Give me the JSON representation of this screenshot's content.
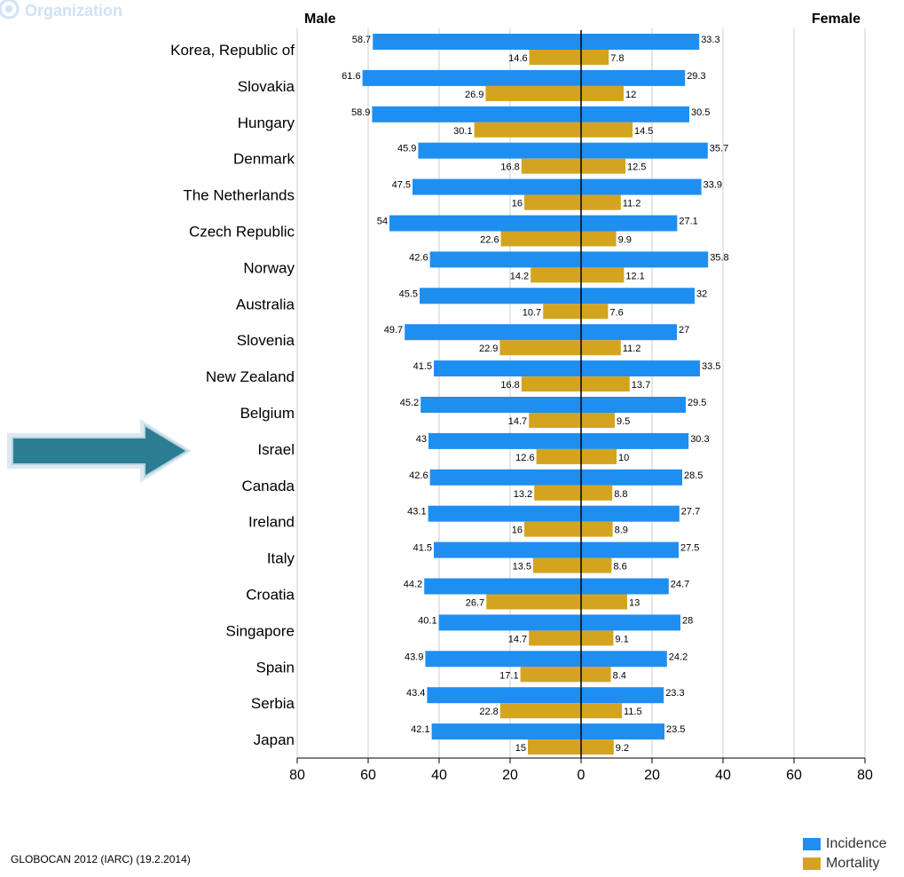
{
  "header": {
    "org_text": "Organization"
  },
  "footer": {
    "source": "GLOBOCAN 2012 (IARC) (19.2.2014)"
  },
  "colors": {
    "incidence": "#1f8ef1",
    "mortality": "#d4a421",
    "grid": "#cccccc",
    "arrow": "#2b7d94"
  },
  "chart_data": {
    "type": "bar",
    "orientation": "horizontal-butterfly",
    "left_title": "Male",
    "right_title": "Female",
    "categories": [
      "Korea, Republic of",
      "Slovakia",
      "Hungary",
      "Denmark",
      "The Netherlands",
      "Czech Republic",
      "Norway",
      "Australia",
      "Slovenia",
      "New Zealand",
      "Belgium",
      "Israel",
      "Canada",
      "Ireland",
      "Italy",
      "Croatia",
      "Singapore",
      "Spain",
      "Serbia",
      "Japan"
    ],
    "series": [
      {
        "name": "Incidence",
        "side": "Male",
        "values": [
          58.7,
          61.6,
          58.9,
          45.9,
          47.5,
          54,
          42.6,
          45.5,
          49.7,
          41.5,
          45.2,
          43,
          42.6,
          43.1,
          41.5,
          44.2,
          40.1,
          43.9,
          43.4,
          42.1
        ]
      },
      {
        "name": "Mortality",
        "side": "Male",
        "values": [
          14.6,
          26.9,
          30.1,
          16.8,
          16,
          22.6,
          14.2,
          10.7,
          22.9,
          16.8,
          14.7,
          12.6,
          13.2,
          16,
          13.5,
          26.7,
          14.7,
          17.1,
          22.8,
          15
        ]
      },
      {
        "name": "Incidence",
        "side": "Female",
        "values": [
          33.3,
          29.3,
          30.5,
          35.7,
          33.9,
          27.1,
          35.8,
          32,
          27,
          33.5,
          29.5,
          30.3,
          28.5,
          27.7,
          27.5,
          24.7,
          28,
          24.2,
          23.3,
          23.5
        ]
      },
      {
        "name": "Mortality",
        "side": "Female",
        "values": [
          7.8,
          12,
          14.5,
          12.5,
          11.2,
          9.9,
          12.1,
          7.6,
          11.2,
          13.7,
          9.5,
          10,
          8.8,
          8.9,
          8.6,
          13,
          9.1,
          8.4,
          11.5,
          9.2
        ]
      }
    ],
    "x_ticks": [
      "80",
      "60",
      "40",
      "20",
      "0",
      "20",
      "40",
      "60",
      "80"
    ],
    "xlim": [
      -80,
      80
    ],
    "grid": true,
    "legend": {
      "position": "bottom-right",
      "entries": [
        "Incidence",
        "Mortality"
      ]
    },
    "highlighted_category": "Israel"
  }
}
